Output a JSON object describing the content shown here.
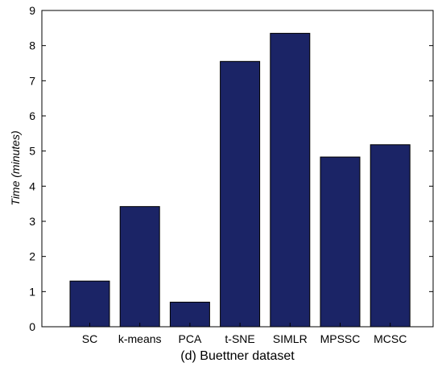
{
  "chart_data": {
    "type": "bar",
    "title": "",
    "caption": "(d) Buettner dataset",
    "xlabel": "",
    "ylabel": "Time (minutes)",
    "categories": [
      "SC",
      "k-means",
      "PCA",
      "t-SNE",
      "SIMLR",
      "MPSSC",
      "MCSC"
    ],
    "values": [
      1.3,
      3.42,
      0.7,
      7.55,
      8.35,
      4.83,
      5.18
    ],
    "ylim": [
      0,
      9
    ],
    "yticks": [
      "0",
      "1",
      "2",
      "3",
      "4",
      "5",
      "6",
      "7",
      "8",
      "9"
    ],
    "grid": false,
    "legend": "none",
    "colors": {
      "bar_fill": "#1b2466",
      "bar_edge": "#000000",
      "axis": "#000000"
    }
  }
}
